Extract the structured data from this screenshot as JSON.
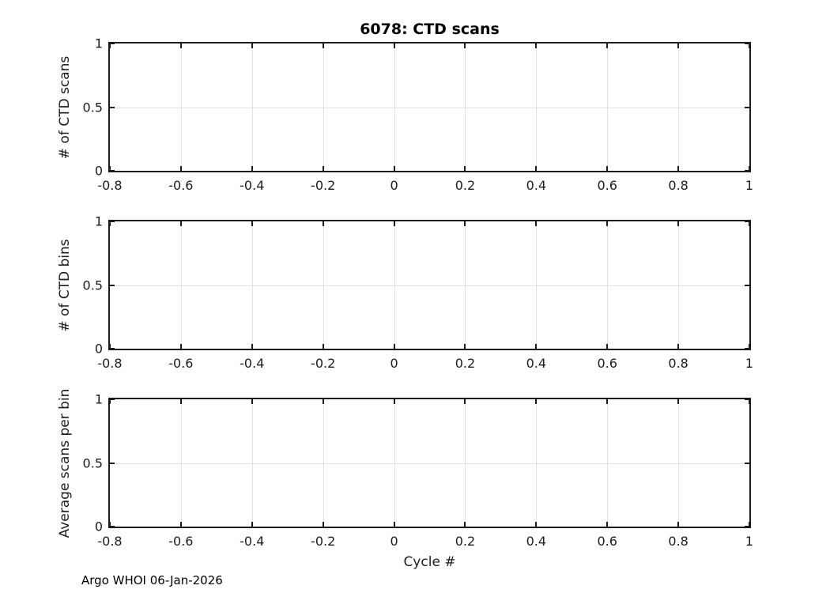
{
  "figure": {
    "footer": "Argo WHOI 06-Jan-2026",
    "background_color": "#ffffff",
    "axis_color": "#1c1c1c",
    "grid_color": "#e0e0e0",
    "title_color": "#000000"
  },
  "chart_data": [
    {
      "type": "line",
      "title": "6078: CTD scans",
      "xlabel": "",
      "ylabel": "# of CTD scans",
      "xlim": [
        -0.8,
        1
      ],
      "ylim": [
        0,
        1
      ],
      "xticks": [
        -0.8,
        -0.6,
        -0.4,
        -0.2,
        0,
        0.2,
        0.4,
        0.6,
        0.8,
        1
      ],
      "yticks": [
        0,
        0.5,
        1
      ],
      "grid": true,
      "legend": "none",
      "series": []
    },
    {
      "type": "line",
      "title": "",
      "xlabel": "",
      "ylabel": "# of CTD bins",
      "xlim": [
        -0.8,
        1
      ],
      "ylim": [
        0,
        1
      ],
      "xticks": [
        -0.8,
        -0.6,
        -0.4,
        -0.2,
        0,
        0.2,
        0.4,
        0.6,
        0.8,
        1
      ],
      "yticks": [
        0,
        0.5,
        1
      ],
      "grid": true,
      "legend": "none",
      "series": []
    },
    {
      "type": "line",
      "title": "",
      "xlabel": "Cycle #",
      "ylabel": "Average scans per bin",
      "xlim": [
        -0.8,
        1
      ],
      "ylim": [
        0,
        1
      ],
      "xticks": [
        -0.8,
        -0.6,
        -0.4,
        -0.2,
        0,
        0.2,
        0.4,
        0.6,
        0.8,
        1
      ],
      "yticks": [
        0,
        0.5,
        1
      ],
      "grid": true,
      "legend": "none",
      "series": []
    }
  ]
}
